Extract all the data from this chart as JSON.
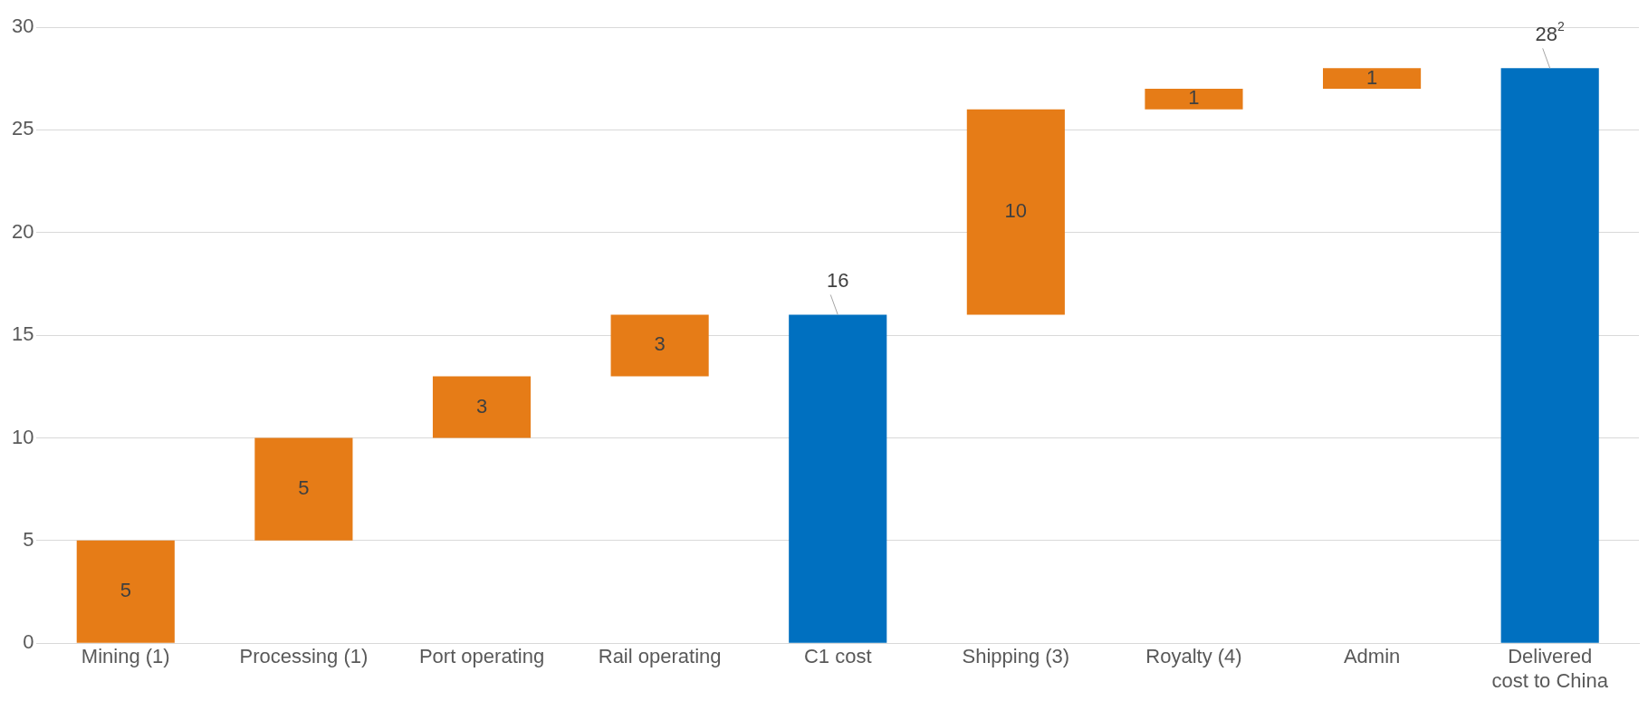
{
  "chart_data": {
    "type": "bar",
    "categories": [
      "Mining (1)",
      "Processing (1)",
      "Port operating",
      "Rail operating",
      "C1 cost",
      "Shipping (3)",
      "Royalty (4)",
      "Admin",
      "Delivered cost to China"
    ],
    "values": [
      5,
      5,
      3,
      3,
      16,
      10,
      1,
      1,
      28
    ],
    "base": [
      0,
      5,
      10,
      13,
      0,
      16,
      26,
      27,
      0
    ],
    "colors": [
      "#e67c17",
      "#e67c17",
      "#e67c17",
      "#e67c17",
      "#0070c0",
      "#e67c17",
      "#e67c17",
      "#e67c17",
      "#0070c0"
    ],
    "value_labels": [
      "5",
      "5",
      "3",
      "3",
      "16",
      "10",
      "1",
      "1",
      "28$^{2}$"
    ],
    "ylim": [
      0,
      30
    ],
    "yticks": [
      0,
      5,
      10,
      15,
      20,
      25,
      30
    ],
    "grid": "y",
    "legend": false
  }
}
